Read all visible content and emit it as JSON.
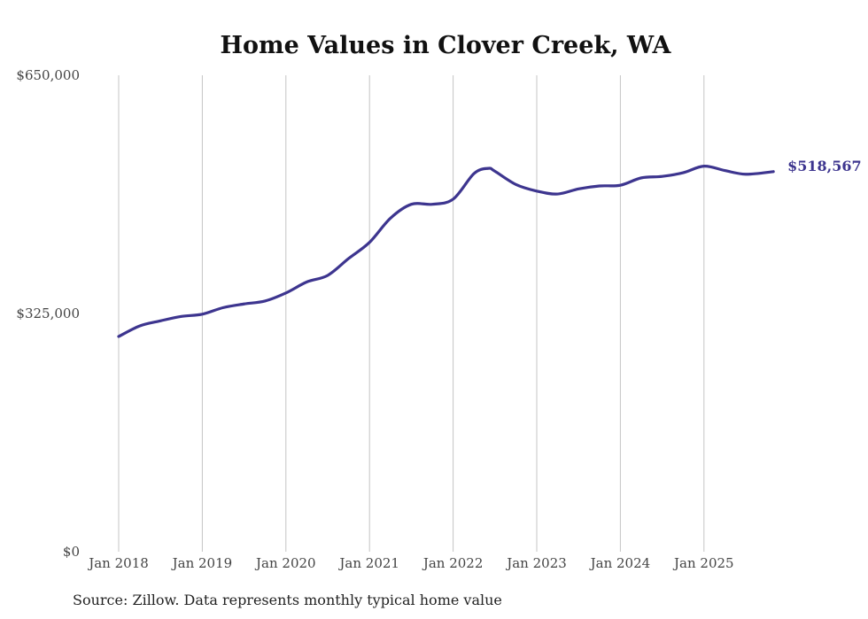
{
  "chart_data": {
    "type": "line",
    "title": "Home Values in Clover Creek, WA",
    "xlabel": "",
    "ylabel": "",
    "ylim": [
      0,
      650000
    ],
    "xlim": [
      2018.0,
      2025.83
    ],
    "grid": "vertical",
    "y_ticks": [
      {
        "value": 0,
        "label": "$0"
      },
      {
        "value": 325000,
        "label": "$325,000"
      },
      {
        "value": 650000,
        "label": "$650,000"
      }
    ],
    "x_ticks": [
      {
        "value": 2018,
        "label": "Jan 2018"
      },
      {
        "value": 2019,
        "label": "Jan 2019"
      },
      {
        "value": 2020,
        "label": "Jan 2020"
      },
      {
        "value": 2021,
        "label": "Jan 2021"
      },
      {
        "value": 2022,
        "label": "Jan 2022"
      },
      {
        "value": 2023,
        "label": "Jan 2023"
      },
      {
        "value": 2024,
        "label": "Jan 2024"
      },
      {
        "value": 2025,
        "label": "Jan 2025"
      }
    ],
    "series": [
      {
        "name": "Typical home value",
        "color": "#3d358f",
        "x": [
          2018.0,
          2018.25,
          2018.5,
          2018.75,
          2019.0,
          2019.25,
          2019.5,
          2019.75,
          2020.0,
          2020.25,
          2020.5,
          2020.75,
          2021.0,
          2021.25,
          2021.5,
          2021.75,
          2022.0,
          2022.25,
          2022.42,
          2022.5,
          2022.75,
          2023.0,
          2023.25,
          2023.5,
          2023.75,
          2024.0,
          2024.25,
          2024.5,
          2024.75,
          2025.0,
          2025.25,
          2025.5,
          2025.83
        ],
        "values": [
          293600,
          308000,
          315000,
          321000,
          324000,
          333000,
          338000,
          342000,
          353000,
          368000,
          377000,
          400000,
          422000,
          455000,
          474000,
          474000,
          481000,
          516000,
          523000,
          519000,
          501000,
          492000,
          488000,
          495000,
          499000,
          500000,
          510000,
          512000,
          517000,
          526000,
          520000,
          515000,
          518567
        ]
      }
    ],
    "end_label": "$518,567"
  },
  "source": "Source: Zillow. Data represents monthly typical home value"
}
